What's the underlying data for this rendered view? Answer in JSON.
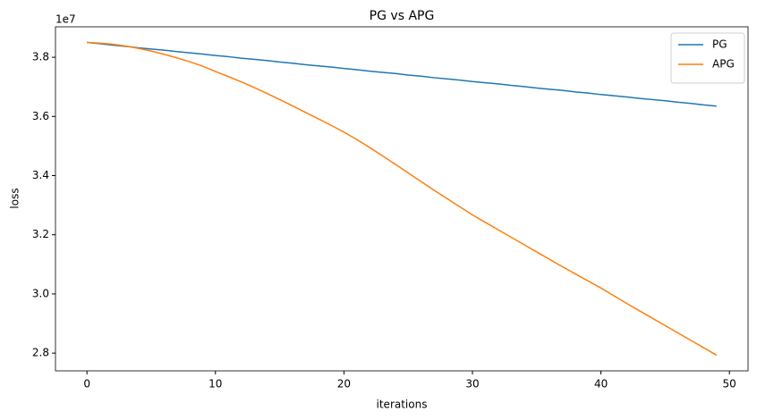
{
  "chart_data": {
    "type": "line",
    "title": "PG vs APG",
    "x_label": "iterations",
    "y_label": "loss",
    "y_offset_label": "1e7",
    "x": [
      0,
      1,
      2,
      3,
      4,
      5,
      6,
      7,
      8,
      9,
      10,
      11,
      12,
      13,
      14,
      15,
      16,
      17,
      18,
      19,
      20,
      21,
      22,
      23,
      24,
      25,
      26,
      27,
      28,
      29,
      30,
      31,
      32,
      33,
      34,
      35,
      36,
      37,
      38,
      39,
      40,
      41,
      42,
      43,
      44,
      45,
      46,
      47,
      48,
      49
    ],
    "series": [
      {
        "name": "PG",
        "color": "#1f77b4",
        "values": [
          3.85,
          3.846,
          3.841,
          3.837,
          3.832,
          3.828,
          3.824,
          3.819,
          3.815,
          3.811,
          3.806,
          3.802,
          3.797,
          3.793,
          3.789,
          3.784,
          3.78,
          3.775,
          3.771,
          3.767,
          3.762,
          3.758,
          3.753,
          3.749,
          3.745,
          3.74,
          3.736,
          3.731,
          3.727,
          3.723,
          3.718,
          3.714,
          3.71,
          3.705,
          3.701,
          3.696,
          3.692,
          3.688,
          3.683,
          3.679,
          3.674,
          3.67,
          3.666,
          3.661,
          3.657,
          3.653,
          3.648,
          3.644,
          3.639,
          3.635
        ]
      },
      {
        "name": "APG",
        "color": "#ff7f0e",
        "values": [
          3.85,
          3.848,
          3.844,
          3.838,
          3.83,
          3.821,
          3.81,
          3.798,
          3.785,
          3.77,
          3.752,
          3.735,
          3.717,
          3.698,
          3.678,
          3.657,
          3.636,
          3.614,
          3.592,
          3.57,
          3.547,
          3.522,
          3.495,
          3.467,
          3.438,
          3.409,
          3.38,
          3.351,
          3.323,
          3.295,
          3.267,
          3.242,
          3.217,
          3.192,
          3.167,
          3.142,
          3.117,
          3.092,
          3.068,
          3.044,
          3.02,
          2.994,
          2.968,
          2.943,
          2.918,
          2.893,
          2.868,
          2.843,
          2.818,
          2.793
        ]
      }
    ],
    "xlim": [
      -2.45,
      51.45
    ],
    "xticks": [
      0,
      10,
      20,
      30,
      40,
      50
    ],
    "ylim": [
      2.74,
      3.903
    ],
    "yticks": [
      2.8,
      3.2,
      3.4,
      3.6,
      3.8,
      {
        "value": 3,
        "label": "3.0"
      }
    ],
    "grid": false,
    "legend": "upper right"
  }
}
